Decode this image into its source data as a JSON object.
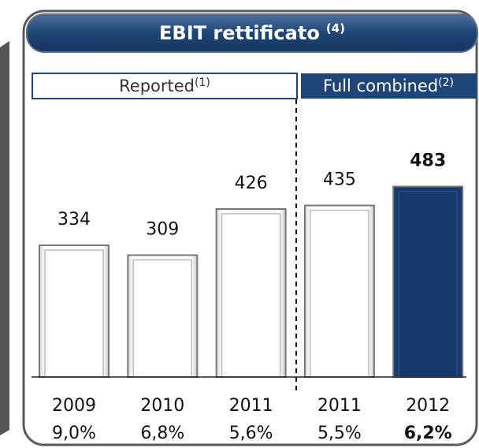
{
  "chart_data": {
    "type": "bar",
    "title": "EBIT rettificato",
    "title_note": "(4)",
    "groups": [
      {
        "label": "Reported",
        "note": "(1)"
      },
      {
        "label": "Full combined",
        "note": "(2)"
      }
    ],
    "categories": [
      "2009",
      "2010",
      "2011",
      "2011",
      "2012"
    ],
    "values": [
      334,
      309,
      426,
      435,
      483
    ],
    "margin_labels": [
      "9,0%",
      "6,8%",
      "5,6%",
      "5,5%",
      "6,2%"
    ],
    "colors": [
      "#ffffff",
      "#ffffff",
      "#ffffff",
      "#ffffff",
      "#163a6b"
    ]
  }
}
